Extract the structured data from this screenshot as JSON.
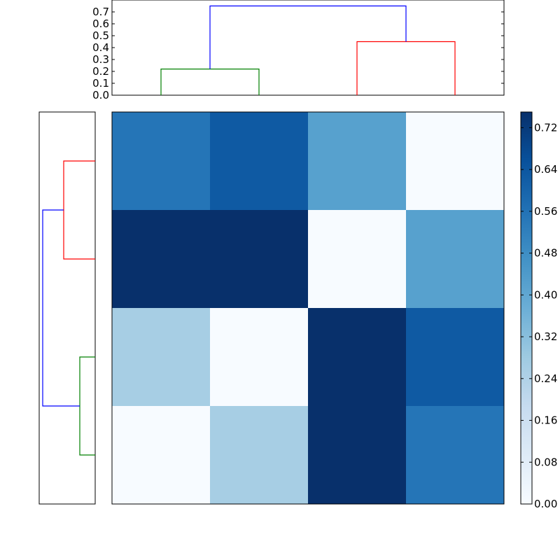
{
  "chart_data": [
    {
      "type": "dendrogram",
      "orientation": "top",
      "ylim": [
        0,
        0.8
      ],
      "yticks": [
        "0.0",
        "0.1",
        "0.2",
        "0.3",
        "0.4",
        "0.5",
        "0.6",
        "0.7"
      ],
      "links": [
        {
          "left_leaf_pos": 0,
          "right_leaf_pos": 1,
          "height": 0.22,
          "color": "#008000"
        },
        {
          "left_leaf_pos": 2,
          "right_leaf_pos": 3,
          "height": 0.45,
          "color": "#ff0000"
        },
        {
          "left_leaf_pos": 0.5,
          "right_leaf_pos": 2.5,
          "left_base": 0.22,
          "right_base": 0.45,
          "height": 0.75,
          "color": "#0000ff"
        }
      ]
    },
    {
      "type": "dendrogram",
      "orientation": "left",
      "links": [
        {
          "left_leaf_pos": 0,
          "right_leaf_pos": 1,
          "height": 0.45,
          "color": "#ff0000"
        },
        {
          "left_leaf_pos": 2,
          "right_leaf_pos": 3,
          "height": 0.22,
          "color": "#008000"
        },
        {
          "left_leaf_pos": 0.5,
          "right_leaf_pos": 2.5,
          "left_base": 0.45,
          "right_base": 0.22,
          "height": 0.75,
          "color": "#0000ff"
        }
      ]
    },
    {
      "type": "heatmap",
      "colormap": "Blues",
      "vmin": 0,
      "vmax": 0.75,
      "values": [
        [
          0.55,
          0.63,
          0.42,
          0.0
        ],
        [
          0.75,
          0.75,
          0.0,
          0.42
        ],
        [
          0.26,
          0.0,
          0.75,
          0.63
        ],
        [
          0.0,
          0.26,
          0.75,
          0.55
        ]
      ],
      "colorbar_ticks": [
        "0.00",
        "0.08",
        "0.16",
        "0.24",
        "0.32",
        "0.40",
        "0.48",
        "0.56",
        "0.64",
        "0.72"
      ]
    }
  ]
}
